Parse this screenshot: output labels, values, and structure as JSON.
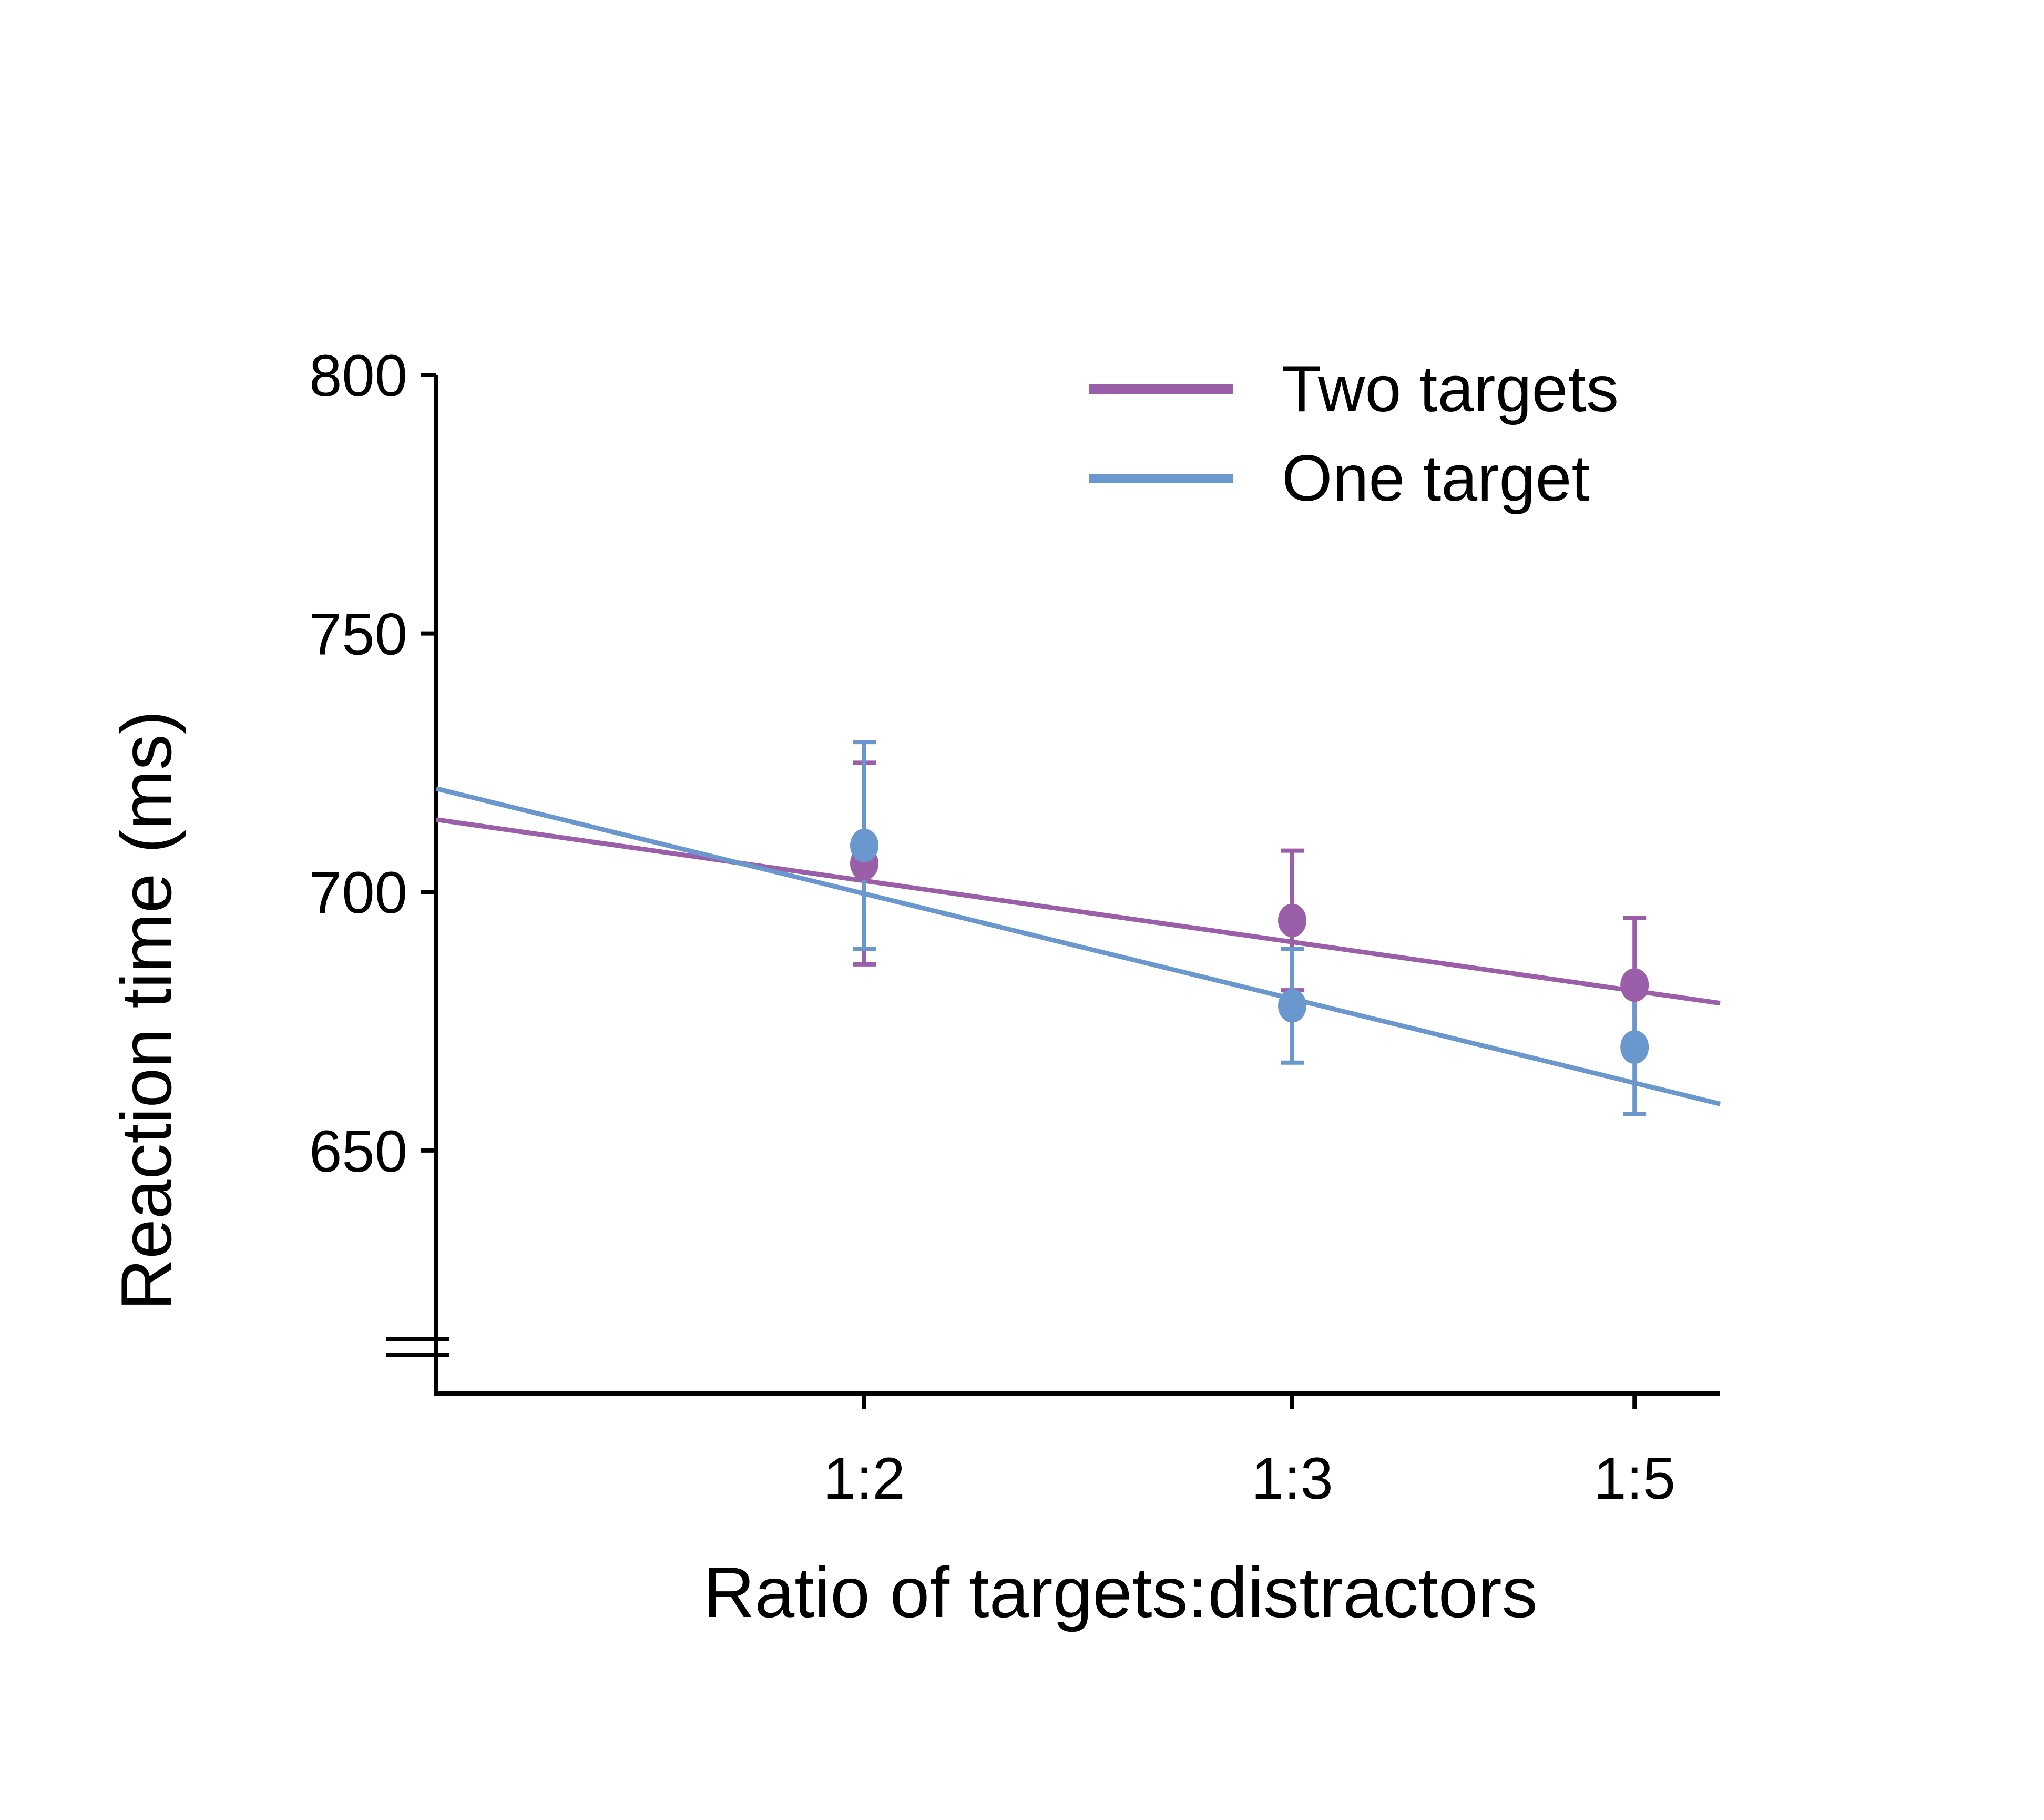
{
  "chart_data": {
    "type": "line",
    "title": "",
    "xlabel": "Ratio of targets:distractors",
    "ylabel": "Reaction time (ms)",
    "categories": [
      "1:2",
      "1:3",
      "1:5"
    ],
    "x": [
      2,
      3,
      5
    ],
    "x_scale": "reciprocal (1/x)",
    "xlim": [
      1.5,
      6
    ],
    "ylim": [
      603,
      800
    ],
    "y_ticks": [
      650,
      700,
      750,
      800
    ],
    "y_tick_labels": [
      "650",
      "700",
      "750",
      "800"
    ],
    "y_axis_break": true,
    "grid": false,
    "legend_position": "top-right",
    "series": [
      {
        "name": "Two targets",
        "color": "#9b5ea9",
        "values": [
          705.5,
          694.5,
          682
        ],
        "error_upper": [
          725,
          708,
          695
        ],
        "error_lower": [
          686,
          681,
          669
        ],
        "fit_line": {
          "x_start": 1.5,
          "y_start": 714,
          "x_end": 6,
          "y_end": 678.5
        }
      },
      {
        "name": "One target",
        "color": "#6a97cd",
        "values": [
          709,
          678,
          670
        ],
        "error_upper": [
          729,
          689,
          683
        ],
        "error_lower": [
          689,
          667,
          657
        ],
        "fit_line": {
          "x_start": 1.5,
          "y_start": 720,
          "x_end": 6,
          "y_end": 659
        }
      }
    ]
  }
}
